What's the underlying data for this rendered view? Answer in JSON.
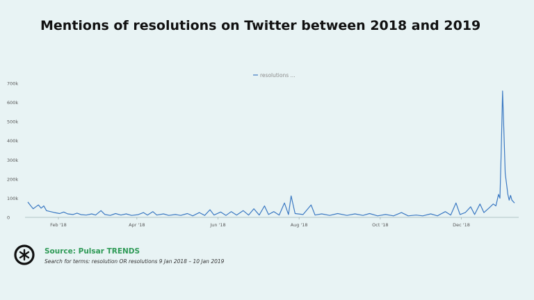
{
  "header": {
    "title": "Mentions of resolutions on Twitter between 2018 and 2019"
  },
  "footer": {
    "source": "Source: Pulsar TRENDS",
    "note": "Search for terms: resolution OR resolutions 9 Jan 2018 – 10 Jan 2019"
  },
  "chart_data": {
    "type": "line",
    "title": "Mentions of resolutions on Twitter between 2018 and 2019",
    "legend": "top-center",
    "grid": false,
    "line_color": "#3a78c2",
    "x_range": [
      "2018-01-09",
      "2019-01-10"
    ],
    "ylim": [
      0,
      700000
    ],
    "y_ticks": [
      {
        "value": 0,
        "label": "0"
      },
      {
        "value": 100000,
        "label": "100k"
      },
      {
        "value": 200000,
        "label": "200k"
      },
      {
        "value": 300000,
        "label": "300k"
      },
      {
        "value": 400000,
        "label": "400k"
      },
      {
        "value": 500000,
        "label": "500k"
      },
      {
        "value": 600000,
        "label": "600k"
      },
      {
        "value": 700000,
        "label": "700k"
      }
    ],
    "x_ticks": [
      {
        "date": "2018-02-01",
        "label": "Feb '18"
      },
      {
        "date": "2018-04-01",
        "label": "Apr '18"
      },
      {
        "date": "2018-06-01",
        "label": "Jun '18"
      },
      {
        "date": "2018-08-01",
        "label": "Aug '18"
      },
      {
        "date": "2018-10-01",
        "label": "Oct '18"
      },
      {
        "date": "2018-12-01",
        "label": "Dec '18"
      }
    ],
    "series": [
      {
        "name": "resolutions ...",
        "points": [
          [
            "2018-01-09",
            80000
          ],
          [
            "2018-01-11",
            62000
          ],
          [
            "2018-01-13",
            45000
          ],
          [
            "2018-01-15",
            55000
          ],
          [
            "2018-01-17",
            65000
          ],
          [
            "2018-01-19",
            48000
          ],
          [
            "2018-01-21",
            60000
          ],
          [
            "2018-01-23",
            35000
          ],
          [
            "2018-01-26",
            30000
          ],
          [
            "2018-01-29",
            25000
          ],
          [
            "2018-02-02",
            20000
          ],
          [
            "2018-02-05",
            28000
          ],
          [
            "2018-02-08",
            18000
          ],
          [
            "2018-02-12",
            15000
          ],
          [
            "2018-02-15",
            22000
          ],
          [
            "2018-02-18",
            14000
          ],
          [
            "2018-02-22",
            12000
          ],
          [
            "2018-02-26",
            18000
          ],
          [
            "2018-03-01",
            12000
          ],
          [
            "2018-03-05",
            35000
          ],
          [
            "2018-03-08",
            15000
          ],
          [
            "2018-03-12",
            10000
          ],
          [
            "2018-03-16",
            20000
          ],
          [
            "2018-03-20",
            12000
          ],
          [
            "2018-03-24",
            18000
          ],
          [
            "2018-03-28",
            10000
          ],
          [
            "2018-04-02",
            14000
          ],
          [
            "2018-04-06",
            25000
          ],
          [
            "2018-04-09",
            12000
          ],
          [
            "2018-04-13",
            30000
          ],
          [
            "2018-04-16",
            12000
          ],
          [
            "2018-04-21",
            18000
          ],
          [
            "2018-04-25",
            10000
          ],
          [
            "2018-04-30",
            15000
          ],
          [
            "2018-05-04",
            10000
          ],
          [
            "2018-05-09",
            20000
          ],
          [
            "2018-05-13",
            8000
          ],
          [
            "2018-05-18",
            25000
          ],
          [
            "2018-05-22",
            10000
          ],
          [
            "2018-05-26",
            40000
          ],
          [
            "2018-05-29",
            12000
          ],
          [
            "2018-06-03",
            28000
          ],
          [
            "2018-06-07",
            10000
          ],
          [
            "2018-06-11",
            30000
          ],
          [
            "2018-06-15",
            12000
          ],
          [
            "2018-06-20",
            35000
          ],
          [
            "2018-06-24",
            12000
          ],
          [
            "2018-06-28",
            45000
          ],
          [
            "2018-07-02",
            12000
          ],
          [
            "2018-07-06",
            60000
          ],
          [
            "2018-07-09",
            15000
          ],
          [
            "2018-07-13",
            30000
          ],
          [
            "2018-07-17",
            12000
          ],
          [
            "2018-07-21",
            75000
          ],
          [
            "2018-07-24",
            15000
          ],
          [
            "2018-07-26",
            112000
          ],
          [
            "2018-07-29",
            20000
          ],
          [
            "2018-08-04",
            15000
          ],
          [
            "2018-08-10",
            65000
          ],
          [
            "2018-08-13",
            12000
          ],
          [
            "2018-08-18",
            18000
          ],
          [
            "2018-08-24",
            10000
          ],
          [
            "2018-08-30",
            20000
          ],
          [
            "2018-09-06",
            10000
          ],
          [
            "2018-09-12",
            18000
          ],
          [
            "2018-09-18",
            10000
          ],
          [
            "2018-09-23",
            20000
          ],
          [
            "2018-09-29",
            8000
          ],
          [
            "2018-10-05",
            15000
          ],
          [
            "2018-10-11",
            8000
          ],
          [
            "2018-10-17",
            25000
          ],
          [
            "2018-10-22",
            8000
          ],
          [
            "2018-10-28",
            12000
          ],
          [
            "2018-11-02",
            8000
          ],
          [
            "2018-11-08",
            18000
          ],
          [
            "2018-11-13",
            8000
          ],
          [
            "2018-11-19",
            30000
          ],
          [
            "2018-11-23",
            12000
          ],
          [
            "2018-11-27",
            75000
          ],
          [
            "2018-11-30",
            15000
          ],
          [
            "2018-12-04",
            25000
          ],
          [
            "2018-12-08",
            55000
          ],
          [
            "2018-12-11",
            15000
          ],
          [
            "2018-12-15",
            70000
          ],
          [
            "2018-12-18",
            25000
          ],
          [
            "2018-12-22",
            50000
          ],
          [
            "2018-12-25",
            70000
          ],
          [
            "2018-12-27",
            60000
          ],
          [
            "2018-12-29",
            120000
          ],
          [
            "2018-12-30",
            100000
          ],
          [
            "2018-12-31",
            350000
          ],
          [
            "2019-01-01",
            660000
          ],
          [
            "2019-01-02",
            450000
          ],
          [
            "2019-01-03",
            230000
          ],
          [
            "2019-01-05",
            120000
          ],
          [
            "2019-01-06",
            90000
          ],
          [
            "2019-01-07",
            115000
          ],
          [
            "2019-01-08",
            90000
          ],
          [
            "2019-01-10",
            75000
          ]
        ]
      }
    ]
  }
}
